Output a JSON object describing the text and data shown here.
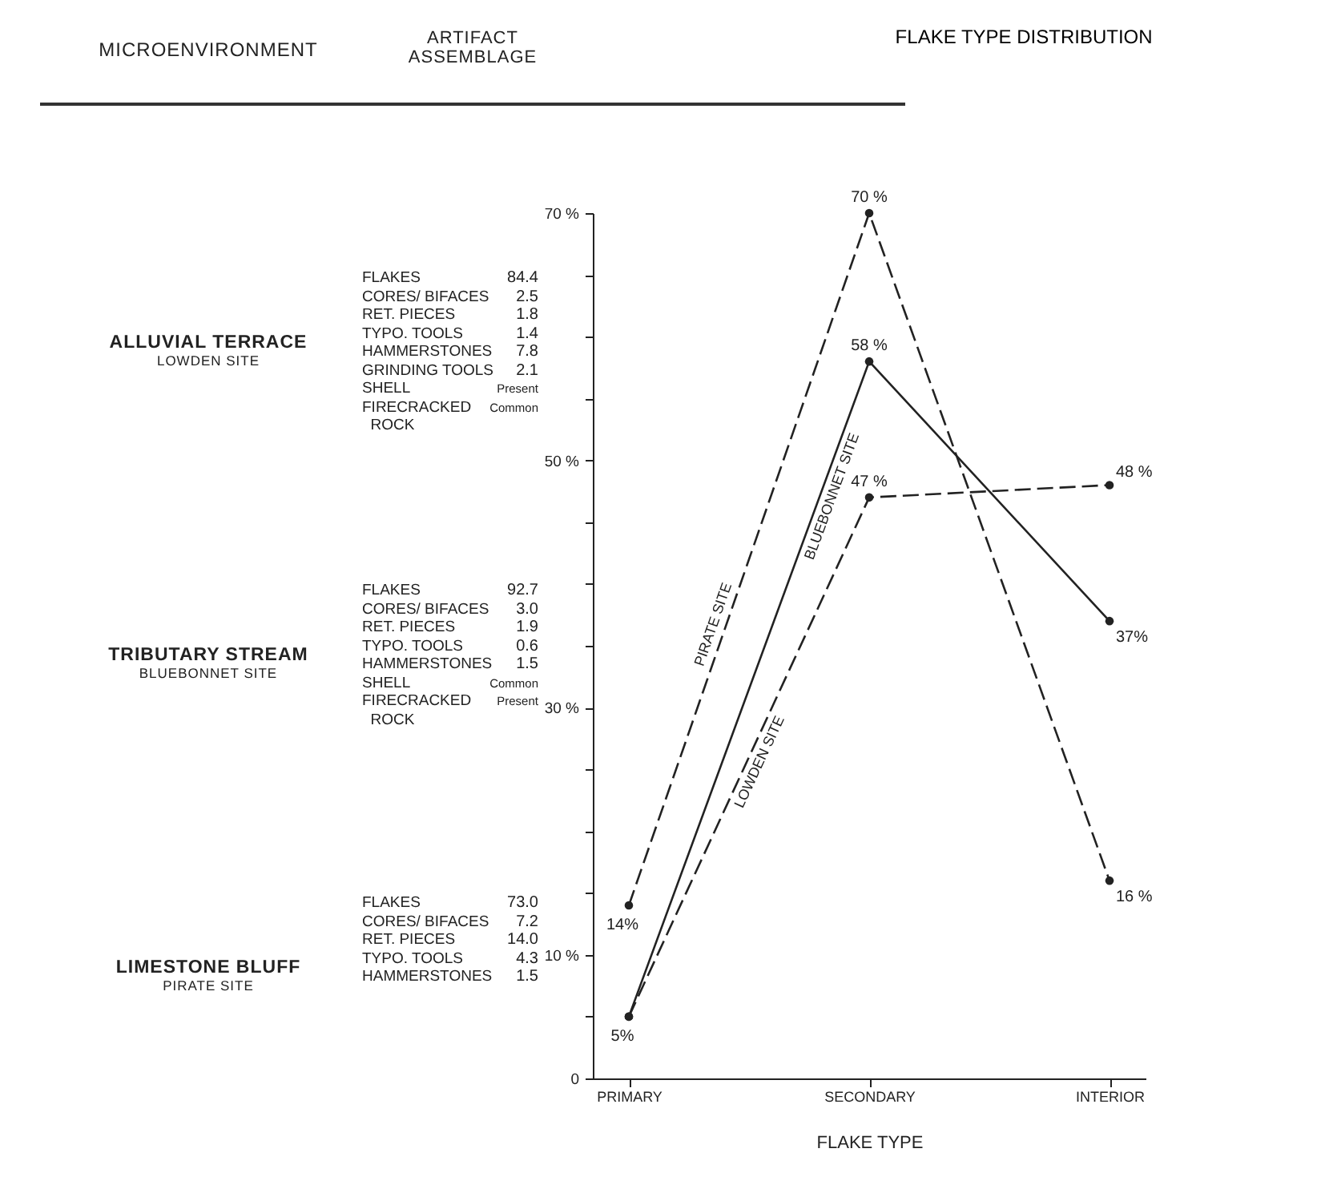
{
  "chart_data": [
    {
      "type": "other",
      "annotations": [
        "MICROENVIRONMENT",
        "ARTIFACT\nASSEMBLAGE",
        "ALLUVIAL TERRACE\nLOWDEN SITE",
        "FLAKES\nCORES/ BIFACES\nRET. PIECES\nTYPO. TOOLS\nHAMMERSTONES\nGRINDING TOOLS\nSHELL\nFIRECRACKED\n  ROCK",
        "84.4\n2.5\n1.8\n1.4\n7.8\n2.1\nPresent\nCommon",
        "TRIBUTARY STREAM\nBLUEBONNET SITE",
        "FLAKES\nCORES/ BIFACES\nRET. PIECES\nTYPO. TOOLS\nHAMMERSTONES\nSHELL\nFIRECRACKED\n  ROCK",
        "92.7\n3.0\n1.9\n0.6\n1.5\nCommon\nPresent",
        "LIMESTONE BLUFF\nPIRATE SITE",
        "FLAKES\nCORES/ BIFACES\nRET. PIECES\nTYPO. TOOLS\nHAMMERSTONES",
        "73.0\n7.2\n14.0\n4.3\n1.5"
      ]
    },
    {
      "type": "line",
      "title": "FLAKE TYPE DISTRIBUTION",
      "xlabel": "FLAKE TYPE",
      "categories": [
        "PRIMARY",
        "SECONDARY",
        "INTERIOR"
      ],
      "ylim": [
        0,
        70
      ],
      "yticks": [
        0,
        {
          "value": 5,
          "label": null
        },
        {
          "value": 10,
          "label": "10 %"
        },
        {
          "value": 15,
          "label": null
        },
        {
          "value": 20,
          "label": null
        },
        {
          "value": 25,
          "label": null
        },
        {
          "value": 30,
          "label": "30 %"
        },
        {
          "value": 35,
          "label": null
        },
        {
          "value": 40,
          "label": null
        },
        {
          "value": 45,
          "label": null
        },
        {
          "value": 50,
          "label": "50 %"
        },
        {
          "value": 55,
          "label": null
        },
        {
          "value": 60,
          "label": null
        },
        {
          "value": 65,
          "label": null
        },
        {
          "value": 70,
          "label": "70 %"
        }
      ],
      "legend": false,
      "grid": false,
      "marker": "circle",
      "series": [
        {
          "name": "PIRATE SITE",
          "color": "#222222",
          "line_style": "dashed",
          "values": [
            14,
            70,
            16
          ],
          "value_labels": [
            "14%",
            "70 %",
            "16 %"
          ]
        },
        {
          "name": "BLUEBONNET SITE",
          "color": "#222222",
          "line_style": "solid",
          "values": [
            5,
            58,
            37
          ],
          "value_labels": [
            "5%",
            "58 %",
            "37%"
          ]
        },
        {
          "name": "LOWDEN SITE",
          "color": "#222222",
          "line_style": "dashed",
          "values": [
            5,
            47,
            48
          ],
          "value_labels": [
            null,
            "47 %",
            "48 %"
          ]
        }
      ]
    }
  ]
}
